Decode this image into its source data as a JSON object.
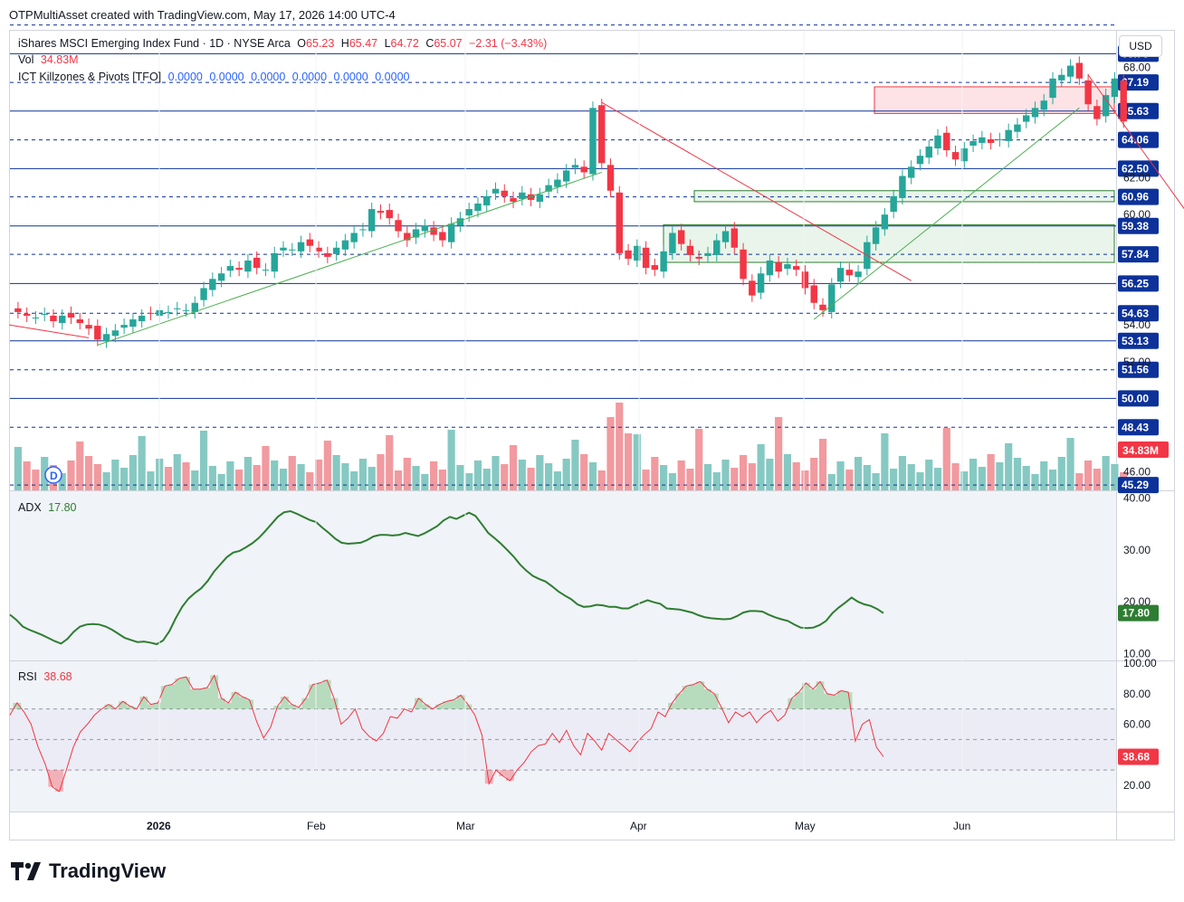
{
  "header": {
    "attribution": "OTPMultiAsset created with TradingView.com, May 17, 2026 14:00 UTC-4",
    "currency_button": "USD"
  },
  "legend": {
    "symbol": "iShares MSCI Emerging Index Fund · 1D · NYSE Arca",
    "open_label": "O",
    "open": "65.23",
    "high_label": "H",
    "high": "65.47",
    "low_label": "L",
    "low": "64.72",
    "close_label": "C",
    "close": "65.07",
    "change": "−2.31 (−3.43%)",
    "vol_label": "Vol",
    "vol": "34.83M",
    "indicator_name": "ICT Killzones & Pivots [TFO]",
    "indicator_values": [
      "0.0000",
      "0.0000",
      "0.0000",
      "0.0000",
      "0.0000",
      "0.0000"
    ],
    "adx_label": "ADX",
    "adx_value": "17.80",
    "rsi_label": "RSI",
    "rsi_value": "38.68"
  },
  "colors": {
    "up": "#26a69a",
    "down": "#f23645",
    "level_line": "#0c3299",
    "adx_line": "#2e7d32",
    "rsi_line": "#f23645",
    "trend_up": "#4caf50",
    "trend_down": "#f23645",
    "volume_up": "#86c9c2",
    "volume_down": "#f19a9f"
  },
  "brand": {
    "logo_icon": "tradingview-logo-icon",
    "name": "TradingView"
  },
  "marker": {
    "label": "D",
    "icon": "dividend-marker-icon"
  },
  "chart_data": [
    {
      "type": "candlestick",
      "title": "iShares MSCI Emerging Index Fund · 1D · NYSE Arca",
      "y_scale": "price",
      "ylim": [
        45.0,
        69.9
      ],
      "y_ticks": [
        "68.00",
        "62.00",
        "60.00",
        "54.00",
        "52.00",
        "46.00"
      ],
      "x_ticks": [
        "2026",
        "Feb",
        "Mar",
        "Apr",
        "May",
        "Jun"
      ],
      "levels": [
        {
          "value": 68.75,
          "label": "68.75",
          "style": "solid"
        },
        {
          "value": 67.19,
          "label": "67.19",
          "style": "dashed"
        },
        {
          "value": 65.63,
          "label": "65.63",
          "style": "solid"
        },
        {
          "value": 64.06,
          "label": "64.06",
          "style": "dashed"
        },
        {
          "value": 62.5,
          "label": "62.50",
          "style": "solid"
        },
        {
          "value": 60.96,
          "label": "60.96",
          "style": "dashed"
        },
        {
          "value": 59.38,
          "label": "59.38",
          "style": "solid"
        },
        {
          "value": 57.84,
          "label": "57.84",
          "style": "dashed"
        },
        {
          "value": 56.25,
          "label": "56.25",
          "style": "solid"
        },
        {
          "value": 54.63,
          "label": "54.63",
          "style": "dashed"
        },
        {
          "value": 53.13,
          "label": "53.13",
          "style": "solid"
        },
        {
          "value": 51.56,
          "label": "51.56",
          "style": "dashed"
        },
        {
          "value": 50.0,
          "label": "50.00",
          "style": "solid"
        },
        {
          "value": 48.43,
          "label": "48.43",
          "style": "dashed"
        },
        {
          "value": 45.29,
          "label": "45.29",
          "style": "dashed"
        },
        {
          "value": 70.31,
          "label": "",
          "style": "dashed"
        }
      ],
      "volume_label": "34.83M",
      "close_series": [
        54.7,
        54.5,
        54.4,
        54.6,
        54.2,
        54.5,
        54.4,
        54.1,
        53.8,
        53.2,
        53.5,
        53.7,
        54.0,
        54.3,
        54.5,
        54.6,
        54.8,
        54.7,
        54.9,
        54.8,
        55.2,
        56.0,
        56.5,
        56.8,
        57.2,
        57.0,
        57.5,
        57.1,
        57.0,
        57.9,
        58.2,
        58.1,
        58.5,
        58.3,
        58.0,
        57.7,
        58.2,
        58.6,
        59.0,
        59.2,
        60.3,
        60.1,
        59.8,
        59.1,
        58.6,
        59.2,
        59.4,
        58.9,
        58.6,
        59.5,
        59.8,
        60.3,
        60.6,
        61.0,
        61.4,
        61.0,
        60.7,
        61.2,
        60.8,
        61.1,
        61.6,
        61.9,
        62.4,
        62.7,
        62.3,
        65.8,
        62.8,
        61.3,
        57.9,
        57.6,
        58.3,
        57.1,
        57.0,
        58.0,
        59.0,
        58.4,
        57.8,
        57.6,
        57.9,
        58.6,
        59.1,
        58.2,
        56.5,
        55.6,
        56.8,
        57.5,
        56.9,
        57.3,
        57.0,
        56.0,
        55.2,
        54.8,
        56.2,
        57.1,
        56.7,
        56.9,
        58.5,
        59.3,
        60.0,
        61.0,
        62.1,
        62.6,
        63.2,
        63.7,
        64.3,
        63.5,
        63.0,
        63.6,
        64.0,
        64.2,
        63.9,
        64.1,
        64.6,
        64.9,
        65.4,
        65.8,
        66.2,
        67.4,
        67.6,
        68.1,
        67.4,
        66.0,
        65.2,
        66.5,
        67.4,
        65.07
      ]
    },
    {
      "type": "line",
      "title": "ADX",
      "ylim": [
        9,
        41
      ],
      "y_ticks": [
        "40.00",
        "30.00",
        "20.00",
        "10.00"
      ],
      "series": [
        {
          "name": "ADX",
          "values": [
            17.5,
            16.5,
            15.2,
            14.6,
            14.1,
            13.6,
            13.0,
            12.4,
            11.9,
            12.8,
            14.2,
            15.2,
            15.6,
            15.7,
            15.6,
            15.2,
            14.6,
            13.8,
            13.0,
            12.6,
            12.2,
            12.3,
            12.1,
            11.8,
            12.5,
            14.3,
            16.8,
            19.0,
            20.6,
            21.7,
            22.6,
            24.0,
            25.8,
            27.2,
            28.6,
            29.5,
            29.8,
            30.5,
            31.3,
            32.3,
            33.6,
            35.0,
            36.4,
            37.3,
            37.5,
            37.0,
            36.4,
            35.8,
            35.4,
            34.3,
            33.3,
            32.2,
            31.4,
            31.2,
            31.3,
            31.4,
            31.9,
            32.6,
            32.9,
            32.9,
            32.8,
            32.9,
            33.3,
            33.0,
            32.7,
            33.2,
            33.9,
            34.6,
            35.7,
            36.4,
            36.0,
            36.6,
            37.2,
            36.6,
            35.0,
            33.3,
            32.3,
            31.2,
            30.0,
            28.7,
            27.2,
            26.0,
            25.0,
            24.4,
            23.9,
            23.0,
            22.0,
            21.2,
            20.5,
            19.5,
            19.0,
            19.1,
            19.4,
            19.3,
            19.0,
            19.0,
            18.7,
            18.7,
            19.3,
            19.8,
            20.3,
            19.9,
            19.6,
            18.7,
            18.6,
            18.5,
            18.2,
            17.9,
            17.4,
            17.0,
            16.8,
            16.7,
            16.6,
            16.7,
            17.2,
            17.9,
            18.2,
            18.2,
            18.1,
            17.5,
            17.0,
            16.6,
            16.3,
            15.6,
            15.0,
            14.9,
            15.0,
            15.5,
            16.3,
            17.8,
            18.9,
            19.8,
            20.8,
            20.0,
            19.5,
            19.2,
            18.6,
            17.8
          ]
        }
      ]
    },
    {
      "type": "line",
      "title": "RSI",
      "ylim": [
        4,
        100
      ],
      "y_ticks": [
        "100.00",
        "80.00",
        "60.00",
        "20.00"
      ],
      "bands": [
        70,
        30
      ],
      "series": [
        {
          "name": "RSI",
          "values": [
            66,
            74,
            68,
            60,
            45,
            34,
            19,
            16,
            30,
            45,
            55,
            60,
            66,
            70,
            73,
            70,
            75,
            72,
            70,
            78,
            73,
            74,
            85,
            86,
            90,
            91,
            83,
            83,
            84,
            92,
            77,
            74,
            81,
            78,
            76,
            62,
            51,
            58,
            72,
            78,
            73,
            71,
            77,
            86,
            87,
            89,
            77,
            60,
            64,
            70,
            57,
            52,
            49,
            54,
            65,
            64,
            70,
            68,
            77,
            73,
            70,
            73,
            75,
            76,
            79,
            73,
            66,
            53,
            21,
            30,
            26,
            23,
            30,
            35,
            42,
            46,
            47,
            54,
            48,
            56,
            46,
            40,
            54,
            49,
            43,
            54,
            50,
            46,
            42,
            48,
            53,
            57,
            68,
            65,
            74,
            80,
            85,
            86,
            88,
            83,
            80,
            71,
            61,
            68,
            65,
            68,
            61,
            66,
            69,
            62,
            66,
            77,
            81,
            87,
            83,
            88,
            80,
            79,
            82,
            81,
            49,
            60,
            63,
            45,
            38.68
          ]
        }
      ]
    }
  ]
}
